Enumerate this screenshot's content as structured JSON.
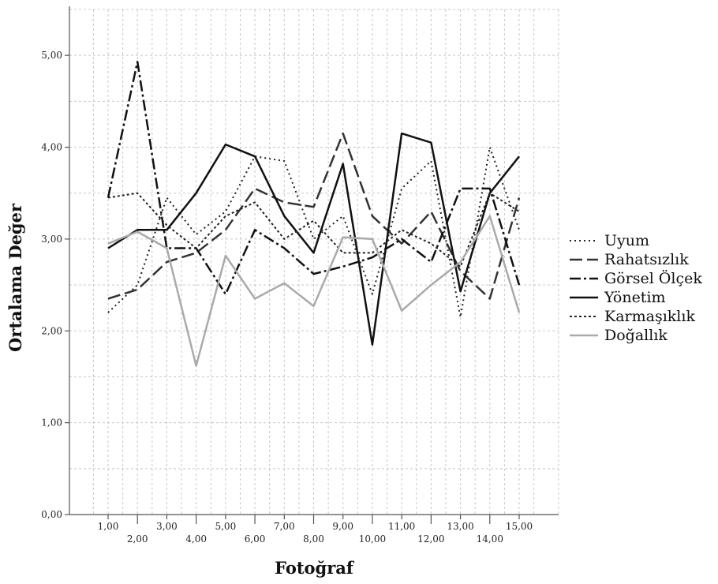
{
  "chart_data": {
    "type": "line",
    "title": "",
    "xlabel": "Fotoğraf",
    "ylabel": "Ortalama Değer",
    "ylim": [
      0,
      5.5
    ],
    "yticks": [
      "0,00",
      "1,00",
      "2,00",
      "3,00",
      "4,00",
      "5,00"
    ],
    "yticks_values": [
      0,
      1,
      2,
      3,
      4,
      5
    ],
    "categories": [
      "1,00",
      "2,00",
      "3,00",
      "4,00",
      "5,00",
      "6,00",
      "7,00",
      "8,00",
      "9,00",
      "10,00",
      "11,00",
      "12,00",
      "13,00",
      "14,00",
      "15,00"
    ],
    "grid": true,
    "legend_position": "right",
    "series": [
      {
        "name": "Uyum",
        "color": "#222222",
        "dash": "2 4",
        "width": 2,
        "values": [
          2.2,
          2.5,
          3.45,
          3.05,
          3.3,
          3.9,
          3.85,
          3.0,
          3.25,
          2.4,
          3.55,
          3.85,
          2.15,
          4.0,
          3.1
        ]
      },
      {
        "name": "Rahatsızlık",
        "color": "#333333",
        "dash": "16 6",
        "width": 2.5,
        "values": [
          2.35,
          2.45,
          2.75,
          2.85,
          3.1,
          3.55,
          3.4,
          3.35,
          4.15,
          3.25,
          2.95,
          3.3,
          2.65,
          2.35,
          3.45
        ]
      },
      {
        "name": "Görsel Ölçek",
        "color": "#111111",
        "dash": "14 4 3 4",
        "width": 2.5,
        "values": [
          3.45,
          4.93,
          2.9,
          2.9,
          2.4,
          3.1,
          2.9,
          2.62,
          2.7,
          2.8,
          3.0,
          2.75,
          3.55,
          3.55,
          2.5
        ]
      },
      {
        "name": "Yönetim",
        "color": "#111111",
        "dash": "",
        "width": 2.5,
        "values": [
          2.9,
          3.1,
          3.1,
          3.5,
          4.03,
          3.9,
          3.25,
          2.85,
          3.82,
          1.85,
          4.15,
          4.05,
          2.43,
          3.5,
          3.9
        ]
      },
      {
        "name": "Karmaşıklık",
        "color": "#222222",
        "dash": "3 3",
        "width": 2,
        "values": [
          3.45,
          3.5,
          3.15,
          2.9,
          3.25,
          3.4,
          3.0,
          3.2,
          2.85,
          2.85,
          3.1,
          2.95,
          2.7,
          3.5,
          3.3
        ]
      },
      {
        "name": "Doğallık",
        "color": "#aaaaaa",
        "dash": "",
        "width": 2.5,
        "values": [
          2.95,
          3.08,
          2.9,
          1.62,
          2.82,
          2.35,
          2.52,
          2.27,
          3.02,
          3.0,
          2.22,
          2.5,
          2.75,
          3.25,
          2.2
        ]
      }
    ]
  }
}
